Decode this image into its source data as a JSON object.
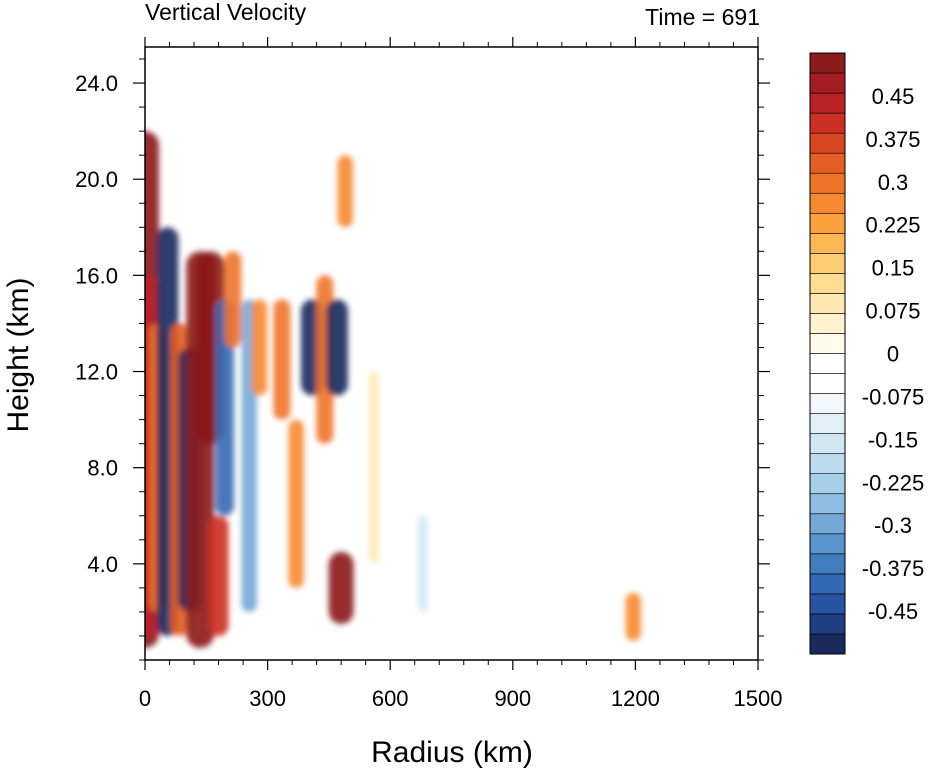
{
  "chart_data": {
    "type": "heatmap",
    "title": "Vertical Velocity",
    "right_title": "Time = 691",
    "xlabel": "Radius (km)",
    "ylabel": "Height (km)",
    "xlim": [
      0,
      1500
    ],
    "ylim": [
      0,
      25.5
    ],
    "x_ticks": [
      "0",
      "300",
      "600",
      "900",
      "1200",
      "1500"
    ],
    "y_ticks": [
      "4.0",
      "8.0",
      "12.0",
      "16.0",
      "20.0",
      "24.0"
    ],
    "colorbar": {
      "min": -0.525,
      "max": 0.525,
      "step": 0.0375,
      "labels": [
        "0.45",
        "0.375",
        "0.3",
        "0.225",
        "0.15",
        "0.075",
        "0",
        "-0.075",
        "-0.15",
        "-0.225",
        "-0.3",
        "-0.375",
        "-0.45"
      ],
      "colors": [
        "#1b2a5e",
        "#203d80",
        "#2654a3",
        "#3369b4",
        "#427ebf",
        "#5994cb",
        "#73a8d6",
        "#8dbde0",
        "#a6cfe8",
        "#bcdcee",
        "#d0e7f3",
        "#e2f0f8",
        "#f1f7fb",
        "#ffffff",
        "#ffffff",
        "#fffaea",
        "#fff3cf",
        "#ffe9b0",
        "#fedd92",
        "#fdcb72",
        "#fcb653",
        "#fba03c",
        "#f78a30",
        "#f07428",
        "#e55e24",
        "#d94622",
        "#cc3024",
        "#bb2226",
        "#a61c24",
        "#8b1a1a"
      ]
    },
    "features": [
      {
        "x": 0,
        "y1": 0.5,
        "y2": 22,
        "w": 6
      },
      {
        "x": 12,
        "y1": 1,
        "y2": 16,
        "w": 0.5
      },
      {
        "x": 30,
        "y1": 2,
        "y2": 14,
        "w": 0.35
      },
      {
        "x": 55,
        "y1": 1,
        "y2": 18,
        "w": -0.5
      },
      {
        "x": 85,
        "y1": 1,
        "y2": 14,
        "w": 0.4
      },
      {
        "x": 110,
        "y1": 2,
        "y2": 13,
        "w": -0.55
      },
      {
        "x": 135,
        "y1": 0.5,
        "y2": 17,
        "w": 0.7
      },
      {
        "x": 160,
        "y1": 9,
        "y2": 17,
        "w": 0.7
      },
      {
        "x": 180,
        "y1": 1,
        "y2": 6,
        "w": 0.45
      },
      {
        "x": 195,
        "y1": 6,
        "y2": 15,
        "w": -0.4
      },
      {
        "x": 215,
        "y1": 13,
        "y2": 17,
        "w": 0.35
      },
      {
        "x": 255,
        "y1": 2,
        "y2": 15,
        "w": -0.3
      },
      {
        "x": 280,
        "y1": 11,
        "y2": 15,
        "w": 0.3
      },
      {
        "x": 335,
        "y1": 10,
        "y2": 15,
        "w": 0.35
      },
      {
        "x": 370,
        "y1": 3,
        "y2": 10,
        "w": 0.3
      },
      {
        "x": 410,
        "y1": 11,
        "y2": 15,
        "w": -0.55
      },
      {
        "x": 440,
        "y1": 9,
        "y2": 16,
        "w": 0.35
      },
      {
        "x": 470,
        "y1": 11,
        "y2": 15,
        "w": -0.5
      },
      {
        "x": 480,
        "y1": 1.5,
        "y2": 4.5,
        "w": 0.6
      },
      {
        "x": 490,
        "y1": 18,
        "y2": 21,
        "w": 0.3
      },
      {
        "x": 560,
        "y1": 4,
        "y2": 12,
        "w": 0.12
      },
      {
        "x": 680,
        "y1": 2,
        "y2": 6,
        "w": -0.12
      },
      {
        "x": 1195,
        "y1": 0.8,
        "y2": 2.8,
        "w": 0.3
      }
    ]
  }
}
